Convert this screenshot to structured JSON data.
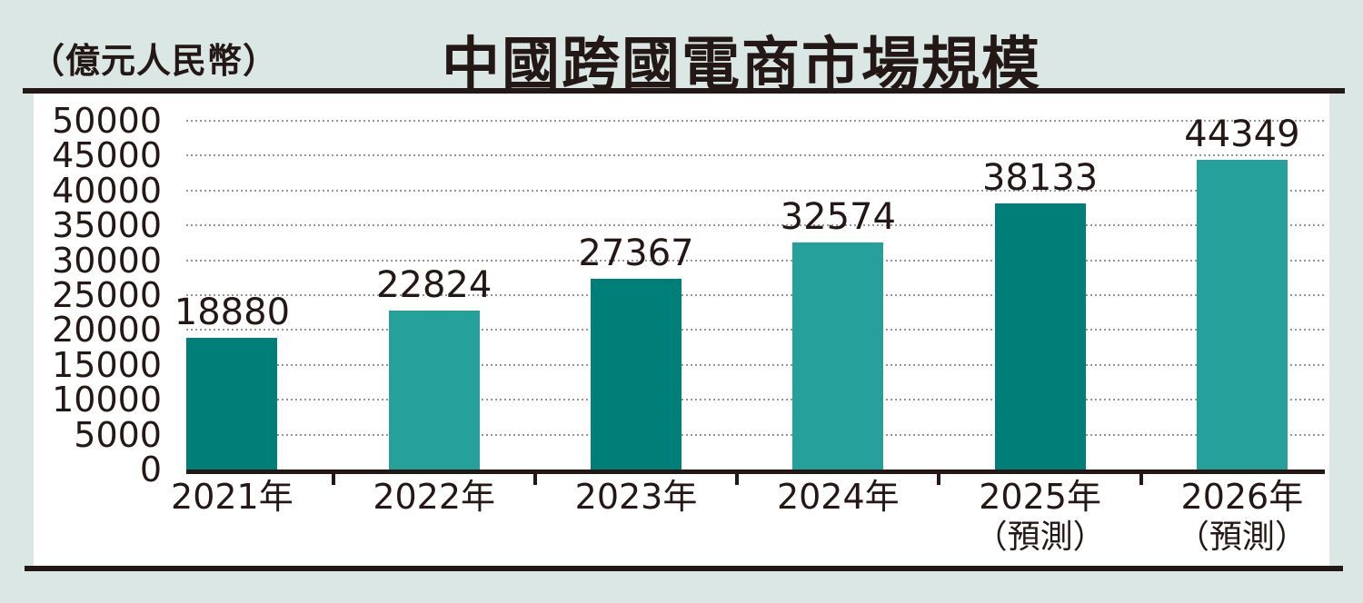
{
  "header": {
    "unit_label": "（億元人民幣）",
    "title": "中國跨國電商市場規模"
  },
  "chart_data": {
    "type": "bar",
    "title": "中國跨國電商市場規模",
    "ylabel": "億元人民幣",
    "xlabel": "",
    "categories": [
      "2021年",
      "2022年",
      "2023年",
      "2024年",
      "2025年",
      "2026年"
    ],
    "category_sublabels": [
      "",
      "",
      "",
      "",
      "（預測）",
      "（預測）"
    ],
    "values": [
      18880,
      22824,
      27367,
      32574,
      38133,
      44349
    ],
    "bar_colors": [
      "#007f78",
      "#25a09b",
      "#007f78",
      "#25a09b",
      "#007f78",
      "#25a09b"
    ],
    "ylim": [
      0,
      50000
    ],
    "yticks": [
      0,
      5000,
      10000,
      15000,
      20000,
      25000,
      30000,
      35000,
      40000,
      45000,
      50000
    ],
    "grid": "horizontal-dotted",
    "legend": "none"
  },
  "colors": {
    "background": "#dae7e4",
    "panel": "#ffffff",
    "ink": "#231815",
    "gridline": "#969696",
    "bar_dark": "#007f78",
    "bar_light": "#25a09b"
  }
}
